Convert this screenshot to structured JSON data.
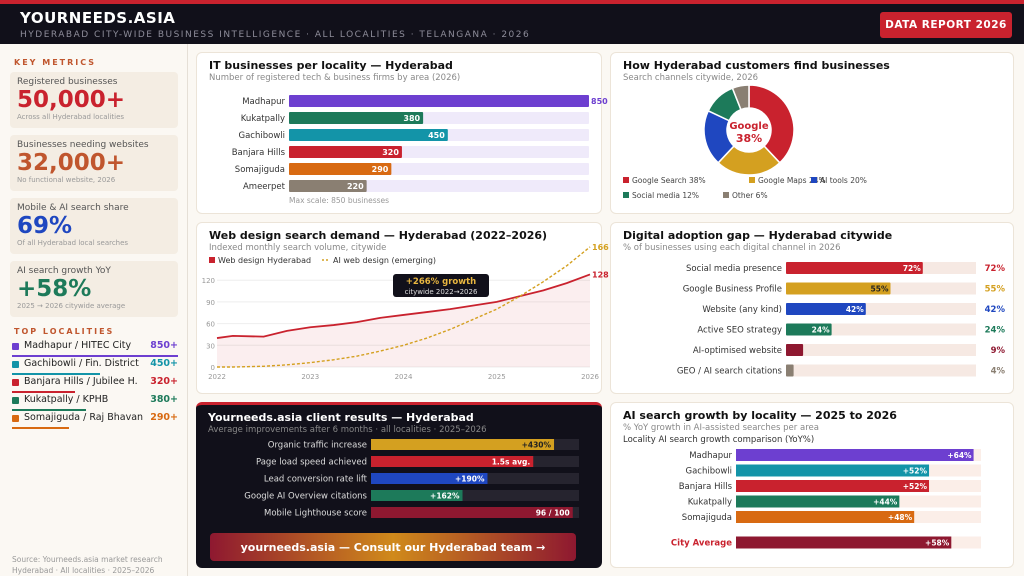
{
  "header": {
    "brand": "YOURNEEDS.ASIA",
    "subtitle": "HYDERABAD CITY-WIDE BUSINESS INTELLIGENCE · ALL LOCALITIES · TELANGANA · 2026",
    "report_button": "DATA REPORT 2026"
  },
  "sidebar": {
    "key_metrics_title": "KEY METRICS",
    "metrics": [
      {
        "label": "Registered businesses",
        "value": "50,000+",
        "note": "Across all Hyderabad localities",
        "color": "#c9222e"
      },
      {
        "label": "Businesses needing websites",
        "value": "32,000+",
        "note": "No functional website, 2026",
        "color": "#c0562e"
      },
      {
        "label": "Mobile & AI search share",
        "value": "69%",
        "note": "Of all Hyderabad local searches",
        "color": "#1f47c0"
      },
      {
        "label": "AI search growth YoY",
        "value": "+58%",
        "note": "2025 → 2026 citywide average",
        "color": "#1d7a5a"
      }
    ],
    "top_localities_title": "TOP LOCALITIES",
    "localities": [
      {
        "name": "Madhapur / HITEC City",
        "value": "850+",
        "color": "#6d3fd0"
      },
      {
        "name": "Gachibowli / Fin. District",
        "value": "450+",
        "color": "#1394a8"
      },
      {
        "name": "Banjara Hills / Jubilee H.",
        "value": "320+",
        "color": "#c9222e"
      },
      {
        "name": "Kukatpally / KPHB",
        "value": "380+",
        "color": "#1d7a5a"
      },
      {
        "name": "Somajiguda / Raj Bhavan",
        "value": "290+",
        "color": "#d86a12"
      }
    ],
    "source_line1": "Source: Yourneeds.asia market research",
    "source_line2": "Hyderabad · All localities · 2025–2026"
  },
  "chart_data": [
    {
      "id": "it_businesses",
      "type": "bar",
      "orientation": "horizontal",
      "title": "IT businesses per locality — Hyderabad",
      "subtitle": "Number of registered tech & business firms by area (2026)",
      "categories": [
        "Madhapur",
        "Kukatpally",
        "Gachibowli",
        "Banjara Hills",
        "Somajiguda",
        "Ameerpet"
      ],
      "values": [
        850,
        380,
        450,
        320,
        290,
        220
      ],
      "labels": [
        "850",
        "380",
        "450",
        "320",
        "290",
        "220"
      ],
      "colors": [
        "#6d3fd0",
        "#1d7a5a",
        "#1394a8",
        "#c9222e",
        "#d86a12",
        "#8a7f72"
      ],
      "xlim": [
        0,
        850
      ],
      "footnote": "Max scale: 850 businesses"
    },
    {
      "id": "search_channels",
      "type": "pie",
      "title": "How Hyderabad customers find businesses",
      "subtitle": "Search channels citywide, 2026",
      "center_label": "Google",
      "center_value": "38%",
      "slices": [
        {
          "label": "Google Search 38%",
          "value": 38,
          "color": "#c9222e"
        },
        {
          "label": "Google Maps 24%",
          "value": 24,
          "color": "#d4a020"
        },
        {
          "label": "AI tools 20%",
          "value": 20,
          "color": "#1f47c0"
        },
        {
          "label": "Social media 12%",
          "value": 12,
          "color": "#1d7a5a"
        },
        {
          "label": "Other 6%",
          "value": 6,
          "color": "#8a7f72"
        }
      ]
    },
    {
      "id": "search_demand",
      "type": "line",
      "title": "Web design search demand — Hyderabad (2022–2026)",
      "subtitle": "Indexed monthly search volume, citywide",
      "x": [
        2022,
        2022.17,
        2022.5,
        2022.75,
        2023,
        2023.25,
        2023.5,
        2023.75,
        2024,
        2024.25,
        2024.5,
        2024.75,
        2025,
        2025.25,
        2025.5,
        2025.75,
        2026
      ],
      "xticks": [
        "2022",
        "2023",
        "2024",
        "2025",
        "2026"
      ],
      "yticks": [
        "0",
        "30",
        "60",
        "90",
        "120"
      ],
      "ylim": [
        0,
        130
      ],
      "series": [
        {
          "name": "Web design Hyderabad",
          "color": "#c9222e",
          "end_label": "128",
          "values": [
            40,
            43,
            42,
            50,
            55,
            58,
            62,
            68,
            72,
            76,
            80,
            85,
            90,
            98,
            106,
            116,
            128
          ]
        },
        {
          "name": "AI web design (emerging)",
          "color": "#d4a020",
          "end_label": "166",
          "values": [
            0,
            0,
            1,
            3,
            6,
            10,
            15,
            22,
            30,
            40,
            52,
            66,
            80,
            98,
            118,
            140,
            166
          ]
        }
      ],
      "annotation_title": "+266% growth",
      "annotation_sub": "citywide 2022→2026"
    },
    {
      "id": "adoption_gap",
      "type": "bar",
      "orientation": "horizontal",
      "title": "Digital adoption gap — Hyderabad citywide",
      "subtitle": "% of businesses using each digital channel in 2026",
      "categories": [
        "Social media presence",
        "Google Business Profile",
        "Website (any kind)",
        "Active SEO strategy",
        "AI-optimised website",
        "GEO / AI search citations"
      ],
      "values": [
        72,
        55,
        42,
        24,
        9,
        4
      ],
      "labels": [
        "72%",
        "55%",
        "42%",
        "24%",
        "9%",
        "4%"
      ],
      "colors": [
        "#c9222e",
        "#d4a020",
        "#1f47c0",
        "#1d7a5a",
        "#8e1830",
        "#8a7f72"
      ],
      "xlim": [
        0,
        100
      ]
    },
    {
      "id": "client_results",
      "type": "bar",
      "orientation": "horizontal",
      "title": "Yourneeds.asia client results — Hyderabad",
      "subtitle": "Average improvements after 6 months · all localities · 2025–2026",
      "categories": [
        "Organic traffic increase",
        "Page load speed achieved",
        "Lead conversion rate lift",
        "Google AI Overview citations",
        "Mobile Lighthouse score"
      ],
      "values": [
        430,
        1.5,
        190,
        162,
        96
      ],
      "fill_fraction": [
        0.88,
        0.78,
        0.56,
        0.44,
        0.97
      ],
      "labels": [
        "+430%",
        "1.5s avg.",
        "+190%",
        "+162%",
        "96 / 100"
      ],
      "colors": [
        "#d4a020",
        "#c9222e",
        "#1f47c0",
        "#1d7a5a",
        "#8e1830"
      ]
    },
    {
      "id": "ai_growth",
      "type": "bar",
      "orientation": "horizontal",
      "title": "AI search growth by locality — 2025 to 2026",
      "subtitle": "% YoY growth in AI-assisted searches per area",
      "legend_text": "Locality AI search growth comparison (YoY%)",
      "categories": [
        "Madhapur",
        "Gachibowli",
        "Banjara Hills",
        "Kukatpally",
        "Somajiguda",
        "City Average"
      ],
      "values": [
        64,
        52,
        52,
        44,
        48,
        58
      ],
      "labels": [
        "+64%",
        "+52%",
        "+52%",
        "+44%",
        "+48%",
        "+58%"
      ],
      "colors": [
        "#6d3fd0",
        "#1394a8",
        "#c9222e",
        "#1d7a5a",
        "#d86a12",
        "#8e1830"
      ],
      "xlim": [
        0,
        66
      ]
    }
  ],
  "cta_label": "yourneeds.asia — Consult our Hyderabad team →"
}
